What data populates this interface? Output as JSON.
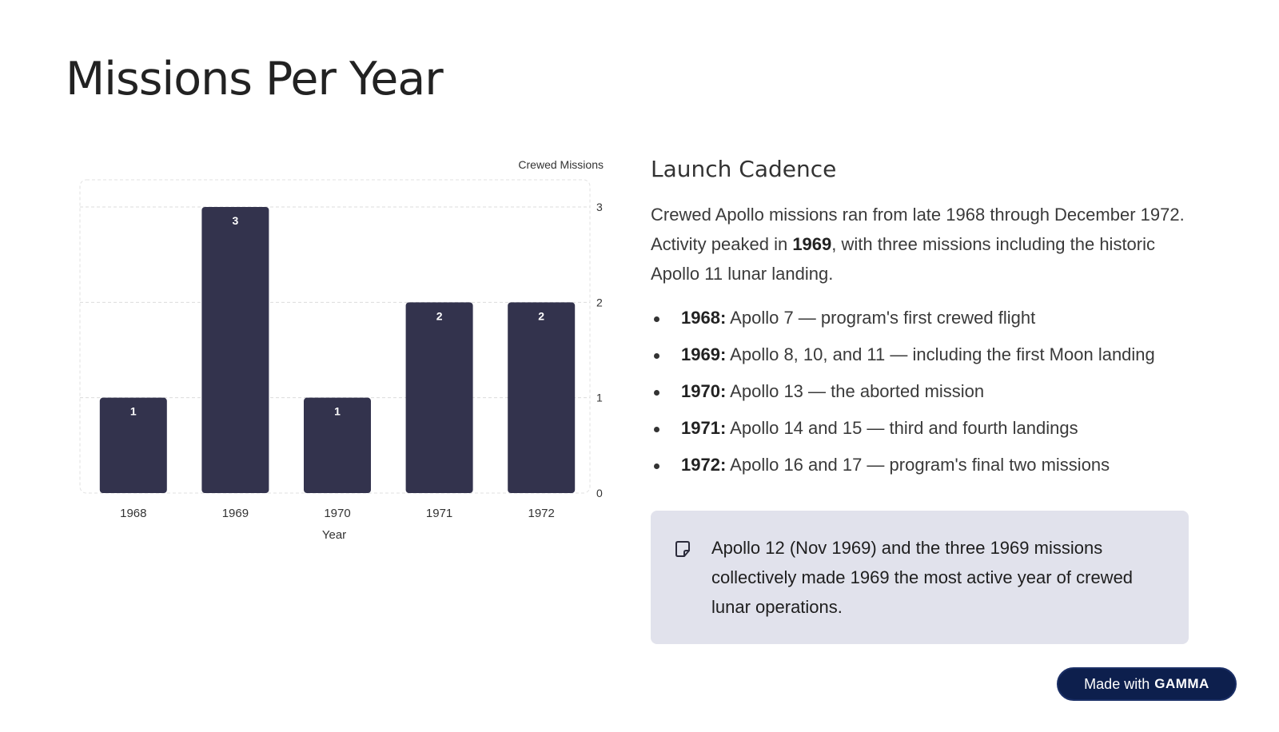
{
  "page": {
    "title": "Missions Per Year"
  },
  "chart_data": {
    "type": "bar",
    "categories": [
      "1968",
      "1969",
      "1970",
      "1971",
      "1972"
    ],
    "values": [
      1,
      3,
      1,
      2,
      2
    ],
    "title": "",
    "xlabel": "Year",
    "ylabel": "Crewed Missions",
    "ylim": [
      0,
      3
    ],
    "yticks": [
      "0",
      "1",
      "2",
      "3"
    ],
    "y_axis_side": "right",
    "grid": true,
    "data_labels": true,
    "bar_color": "#33334d"
  },
  "content": {
    "heading": "Launch Cadence",
    "para_1": "Crewed Apollo missions ran from late 1968 through December 1972. Activity peaked in ",
    "para_bold": "1969",
    "para_2": ", with three missions including the historic Apollo 11 lunar landing.",
    "bullets": [
      {
        "year": "1968:",
        "text": " Apollo 7 — program's first crewed flight"
      },
      {
        "year": "1969:",
        "text": " Apollo 8, 10, and 11 — including the first Moon landing"
      },
      {
        "year": "1970:",
        "text": " Apollo 13 — the aborted mission"
      },
      {
        "year": "1971:",
        "text": " Apollo 14 and 15 — third and fourth landings"
      },
      {
        "year": "1972:",
        "text": " Apollo 16 and 17 — program's final two missions"
      }
    ]
  },
  "note": {
    "icon": "note-icon",
    "text": "Apollo 12 (Nov 1969) and the three 1969 missions collectively made 1969 the most active year of crewed lunar operations."
  },
  "badge": {
    "prefix": "Made with",
    "brand": "GAMMA"
  },
  "colors": {
    "accent": "#33334d",
    "note_bg": "#e1e2ec",
    "badge_bg": "#0d1f4d"
  }
}
